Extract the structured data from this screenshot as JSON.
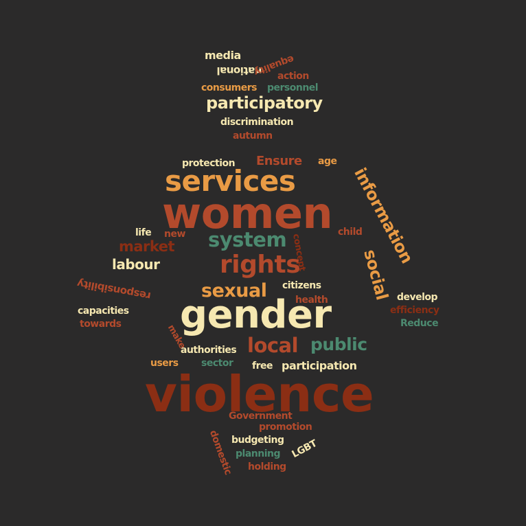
{
  "words": [
    {
      "id": "media",
      "text": "media",
      "color": "cream"
    },
    {
      "id": "national",
      "text": "national",
      "color": "cream"
    },
    {
      "id": "equality",
      "text": "equality",
      "color": "rust"
    },
    {
      "id": "action",
      "text": "action",
      "color": "rust"
    },
    {
      "id": "consumers",
      "text": "consumers",
      "color": "orange"
    },
    {
      "id": "personnel",
      "text": "personnel",
      "color": "green"
    },
    {
      "id": "participatory",
      "text": "participatory",
      "color": "cream"
    },
    {
      "id": "discrimination",
      "text": "discrimination",
      "color": "cream"
    },
    {
      "id": "autumn",
      "text": "autumn",
      "color": "rust"
    },
    {
      "id": "protection",
      "text": "protection",
      "color": "cream"
    },
    {
      "id": "ensure",
      "text": "Ensure",
      "color": "rust"
    },
    {
      "id": "age",
      "text": "age",
      "color": "orange"
    },
    {
      "id": "services",
      "text": "services",
      "color": "orange"
    },
    {
      "id": "information",
      "text": "information",
      "color": "orange"
    },
    {
      "id": "women",
      "text": "women",
      "color": "rust"
    },
    {
      "id": "life",
      "text": "life",
      "color": "cream"
    },
    {
      "id": "new",
      "text": "new",
      "color": "rust"
    },
    {
      "id": "system",
      "text": "system",
      "color": "green"
    },
    {
      "id": "concept",
      "text": "concept",
      "color": "dark"
    },
    {
      "id": "child",
      "text": "child",
      "color": "rust"
    },
    {
      "id": "social",
      "text": "social",
      "color": "orange"
    },
    {
      "id": "market",
      "text": "market",
      "color": "dark"
    },
    {
      "id": "labour",
      "text": "labour",
      "color": "cream"
    },
    {
      "id": "rights",
      "text": "rights",
      "color": "rust"
    },
    {
      "id": "responsibility",
      "text": "responsibility",
      "color": "rust"
    },
    {
      "id": "sexual",
      "text": "sexual",
      "color": "orange"
    },
    {
      "id": "citizens",
      "text": "citizens",
      "color": "cream"
    },
    {
      "id": "health",
      "text": "health",
      "color": "rust"
    },
    {
      "id": "develop",
      "text": "develop",
      "color": "cream"
    },
    {
      "id": "efficiency",
      "text": "efficiency",
      "color": "dark"
    },
    {
      "id": "reduce",
      "text": "Reduce",
      "color": "green"
    },
    {
      "id": "capacities",
      "text": "capacities",
      "color": "cream"
    },
    {
      "id": "towards",
      "text": "towards",
      "color": "rust"
    },
    {
      "id": "gender",
      "text": "gender",
      "color": "cream"
    },
    {
      "id": "make",
      "text": "make",
      "color": "rust"
    },
    {
      "id": "authorities",
      "text": "authorities",
      "color": "cream"
    },
    {
      "id": "local",
      "text": "local",
      "color": "rust"
    },
    {
      "id": "public",
      "text": "public",
      "color": "green"
    },
    {
      "id": "users",
      "text": "users",
      "color": "orange"
    },
    {
      "id": "sector",
      "text": "sector",
      "color": "green"
    },
    {
      "id": "free",
      "text": "free",
      "color": "cream"
    },
    {
      "id": "participation",
      "text": "participation",
      "color": "cream"
    },
    {
      "id": "violence",
      "text": "violence",
      "color": "dark"
    },
    {
      "id": "government",
      "text": "Government",
      "color": "rust"
    },
    {
      "id": "promotion",
      "text": "promotion",
      "color": "rust"
    },
    {
      "id": "domestic",
      "text": "domestic",
      "color": "rust"
    },
    {
      "id": "budgeting",
      "text": "budgeting",
      "color": "cream"
    },
    {
      "id": "lgbt",
      "text": "LGBT",
      "color": "cream"
    },
    {
      "id": "planning",
      "text": "planning",
      "color": "green"
    },
    {
      "id": "holding",
      "text": "holding",
      "color": "rust"
    }
  ],
  "colors": {
    "background": "#2b2a2a",
    "cream": "#f6e8b1",
    "orange": "#e99b45",
    "rust": "#b34a2c",
    "dark": "#8b2e14",
    "green": "#4c8a70"
  }
}
